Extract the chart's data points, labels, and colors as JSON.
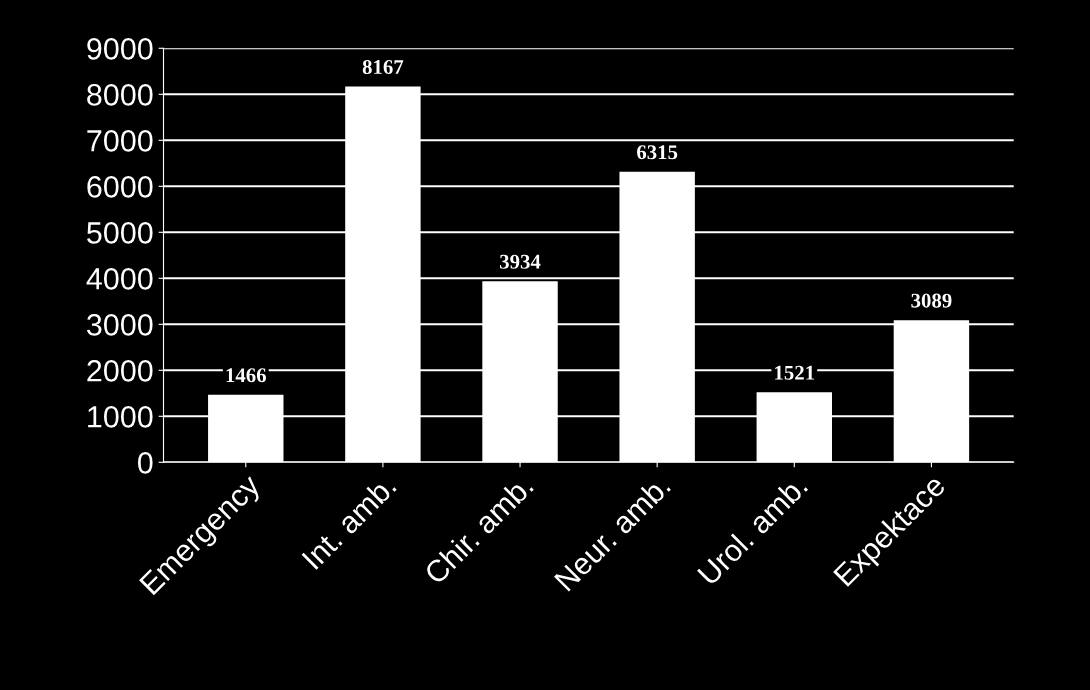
{
  "chart_data": {
    "type": "bar",
    "categories": [
      "Emergency",
      "Int. amb.",
      "Chir. amb.",
      "Neur. amb.",
      "Urol. amb.",
      "Expektace"
    ],
    "values": [
      1466,
      8167,
      3934,
      6315,
      1521,
      3089
    ],
    "color": "#ffffff",
    "ylim": [
      0,
      9000
    ],
    "yticks": [
      0,
      1000,
      2000,
      3000,
      4000,
      5000,
      6000,
      7000,
      8000,
      9000
    ],
    "grid": "y",
    "data_labels": true
  }
}
